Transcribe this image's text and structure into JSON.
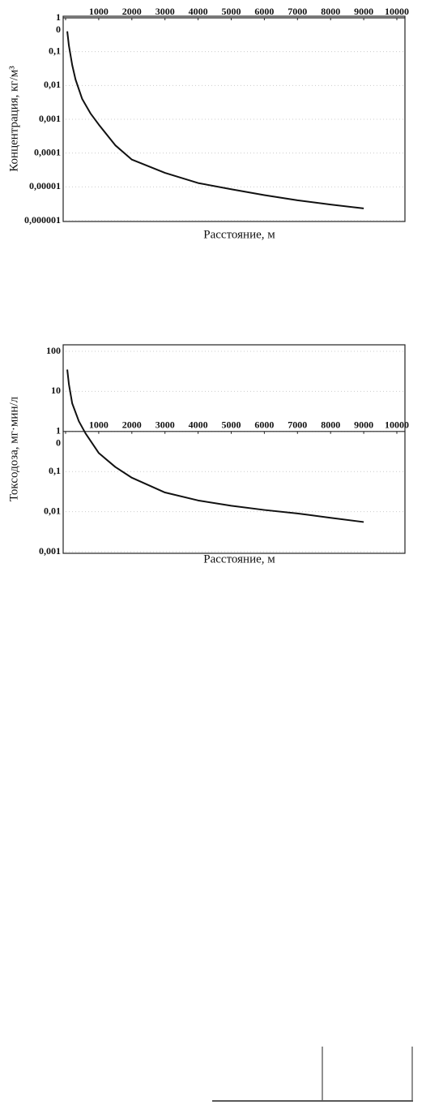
{
  "chart_data": [
    {
      "type": "line",
      "y_label": "Концентрация, кг/м³",
      "x_label": "Расстояние, м",
      "log_y": true,
      "grid": true,
      "color": "#111111",
      "x": [
        50,
        100,
        200,
        300,
        500,
        750,
        1000,
        1500,
        2000,
        3000,
        4000,
        5000,
        6000,
        7000,
        8000,
        9000
      ],
      "series": [
        {
          "values": [
            0.4,
            0.15,
            0.04,
            0.015,
            0.004,
            0.0015,
            0.0007,
            0.00017,
            6.4e-05,
            2.6e-05,
            1.3e-05,
            8.5e-06,
            5.7e-06,
            4e-06,
            3e-06,
            2.3e-06
          ]
        }
      ],
      "xlim": [
        0,
        10000
      ],
      "xticks": [
        0,
        1000,
        2000,
        3000,
        4000,
        5000,
        6000,
        7000,
        8000,
        9000,
        10000
      ],
      "ylim": [
        1e-06,
        1
      ],
      "yticks": [
        1,
        {
          "value": 0.1,
          "label": "0,1"
        },
        {
          "value": 0.01,
          "label": "0,01"
        },
        {
          "value": 0.001,
          "label": "0,001"
        },
        {
          "value": 0.0001,
          "label": "0,0001"
        },
        {
          "value": 1e-05,
          "label": "0,00001"
        },
        {
          "value": 1e-06,
          "label": "0,000001"
        }
      ]
    },
    {
      "type": "line",
      "y_label": "Токсодоза, мг·мин/л",
      "x_label": "Расстояние, м",
      "log_y": true,
      "grid": true,
      "color": "#111111",
      "x": [
        50,
        100,
        200,
        400,
        600,
        1000,
        1500,
        2000,
        3000,
        4000,
        5000,
        6000,
        7000,
        8000,
        9000
      ],
      "series": [
        {
          "values": [
            35,
            15,
            5,
            1.8,
            0.9,
            0.29,
            0.13,
            0.07,
            0.03,
            0.019,
            0.014,
            0.011,
            0.009,
            0.007,
            0.0055
          ]
        }
      ],
      "xlim": [
        0,
        10000
      ],
      "xticks": [
        0,
        1000,
        2000,
        3000,
        4000,
        5000,
        6000,
        7000,
        8000,
        9000,
        10000
      ],
      "ylim": [
        0.001,
        100
      ],
      "yticks": [
        100,
        10,
        1,
        {
          "value": 0.1,
          "label": "0,1"
        },
        {
          "value": 0.01,
          "label": "0,01"
        },
        {
          "value": 0.001,
          "label": "0,001"
        }
      ]
    }
  ]
}
